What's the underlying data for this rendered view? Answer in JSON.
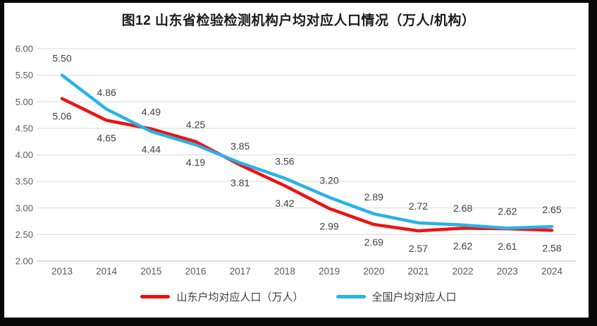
{
  "page": {
    "background": "#080808",
    "canvas_background": "#ffffff"
  },
  "chart_data": {
    "type": "line",
    "title": "图12 山东省检验检测机构户均对应人口情况（万人/机构）",
    "categories": [
      "2013",
      "2014",
      "2015",
      "2016",
      "2017",
      "2018",
      "2019",
      "2020",
      "2021",
      "2022",
      "2023",
      "2024"
    ],
    "series": [
      {
        "name": "山东户均对应人口（万人）",
        "color": "#ee1111",
        "values": [
          5.06,
          4.65,
          4.49,
          4.25,
          3.81,
          3.42,
          2.99,
          2.69,
          2.57,
          2.62,
          2.61,
          2.58
        ]
      },
      {
        "name": "全国户均对应人口",
        "color": "#29b2e8",
        "values": [
          5.5,
          4.86,
          4.44,
          4.19,
          3.85,
          3.56,
          3.2,
          2.89,
          2.72,
          2.68,
          2.62,
          2.65
        ]
      }
    ],
    "ylim": [
      2.0,
      6.0
    ],
    "y_ticks": [
      "6.00",
      "5.50",
      "5.00",
      "4.50",
      "4.00",
      "3.50",
      "3.00",
      "2.50",
      "2.00"
    ],
    "grid": true,
    "data_labels": true,
    "legend_position": "bottom"
  },
  "styles": {
    "grid_color": "#d9d9d9",
    "axis_line_color": "#bfbfbf",
    "tick_label_color": "#595959",
    "data_label_color": "#3f3f3f",
    "title_color": "#1a1a1a",
    "legend_text_color": "#3d3d3d"
  }
}
